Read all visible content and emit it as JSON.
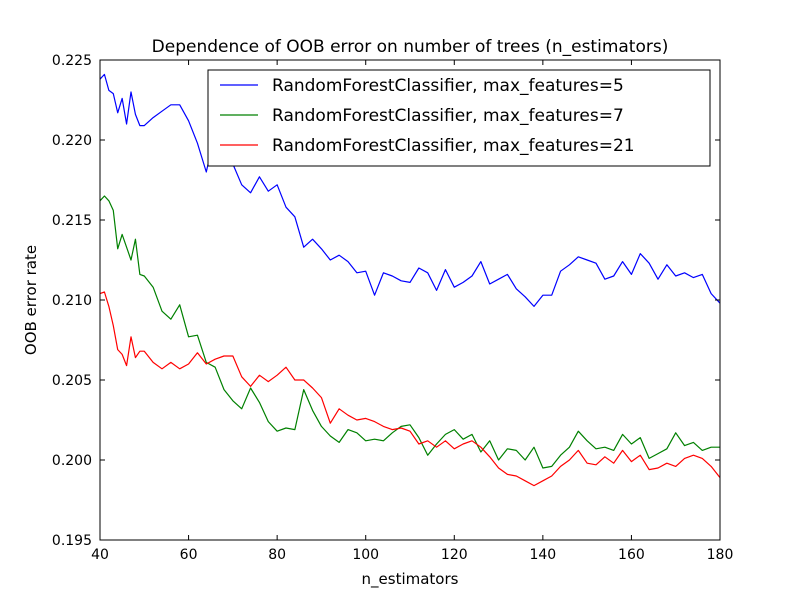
{
  "chart_data": {
    "type": "line",
    "title": "Dependence of OOB error on number of trees (n_estimators)",
    "xlabel": "n_estimators",
    "ylabel": "OOB error rate",
    "xlim": [
      40,
      180
    ],
    "ylim": [
      0.195,
      0.225
    ],
    "xticks": [
      40,
      60,
      80,
      100,
      120,
      140,
      160,
      180
    ],
    "xtick_labels": [
      "40",
      "60",
      "80",
      "100",
      "120",
      "140",
      "160",
      "180"
    ],
    "yticks": [
      0.195,
      0.2,
      0.205,
      0.21,
      0.215,
      0.22,
      0.225
    ],
    "ytick_labels": [
      "0.195",
      "0.200",
      "0.205",
      "0.210",
      "0.215",
      "0.220",
      "0.225"
    ],
    "legend_position": "top-right",
    "grid": false,
    "series": [
      {
        "name": "RandomForestClassifier, max_features=5",
        "color": "#0000ff",
        "x": [
          40,
          41,
          42,
          43,
          44,
          45,
          46,
          47,
          48,
          49,
          50,
          52,
          54,
          56,
          58,
          60,
          62,
          64,
          66,
          68,
          70,
          72,
          74,
          76,
          78,
          80,
          82,
          84,
          86,
          88,
          90,
          92,
          94,
          96,
          98,
          100,
          102,
          104,
          106,
          108,
          110,
          112,
          114,
          116,
          118,
          120,
          122,
          124,
          126,
          128,
          130,
          132,
          134,
          136,
          138,
          140,
          142,
          144,
          146,
          148,
          150,
          152,
          154,
          156,
          158,
          160,
          162,
          164,
          166,
          168,
          170,
          172,
          174,
          176,
          178,
          180
        ],
        "values": [
          0.2238,
          0.2241,
          0.2231,
          0.2229,
          0.2217,
          0.2226,
          0.221,
          0.223,
          0.2216,
          0.2209,
          0.2209,
          0.2214,
          0.2218,
          0.2222,
          0.2222,
          0.2212,
          0.2198,
          0.218,
          0.2205,
          0.2195,
          0.2185,
          0.2172,
          0.2167,
          0.2177,
          0.2168,
          0.2172,
          0.2158,
          0.2152,
          0.2133,
          0.2138,
          0.2132,
          0.2125,
          0.2128,
          0.2124,
          0.2117,
          0.2118,
          0.2103,
          0.2117,
          0.2115,
          0.2112,
          0.2111,
          0.212,
          0.2117,
          0.2106,
          0.2119,
          0.2108,
          0.2111,
          0.2115,
          0.2124,
          0.211,
          0.2113,
          0.2116,
          0.2107,
          0.2102,
          0.2096,
          0.2103,
          0.2103,
          0.2118,
          0.2122,
          0.2127,
          0.2125,
          0.2123,
          0.2113,
          0.2115,
          0.2124,
          0.2116,
          0.2129,
          0.2123,
          0.2113,
          0.2122,
          0.2115,
          0.2117,
          0.2114,
          0.2116,
          0.2104,
          0.2098
        ]
      },
      {
        "name": "RandomForestClassifier, max_features=7",
        "color": "#008000",
        "x": [
          40,
          41,
          42,
          43,
          44,
          45,
          46,
          47,
          48,
          49,
          50,
          52,
          54,
          56,
          58,
          60,
          62,
          64,
          66,
          68,
          70,
          72,
          74,
          76,
          78,
          80,
          82,
          84,
          86,
          88,
          90,
          92,
          94,
          96,
          98,
          100,
          102,
          104,
          106,
          108,
          110,
          112,
          114,
          116,
          118,
          120,
          122,
          124,
          126,
          128,
          130,
          132,
          134,
          136,
          138,
          140,
          142,
          144,
          146,
          148,
          150,
          152,
          154,
          156,
          158,
          160,
          162,
          164,
          166,
          168,
          170,
          172,
          174,
          176,
          178,
          180
        ],
        "values": [
          0.2162,
          0.2165,
          0.2162,
          0.2156,
          0.2132,
          0.2141,
          0.2133,
          0.2125,
          0.2138,
          0.2116,
          0.2115,
          0.2108,
          0.2093,
          0.2088,
          0.2097,
          0.2077,
          0.2078,
          0.2061,
          0.2058,
          0.2044,
          0.2037,
          0.2032,
          0.2045,
          0.2036,
          0.2024,
          0.2018,
          0.202,
          0.2019,
          0.2044,
          0.2031,
          0.2021,
          0.2015,
          0.2011,
          0.2019,
          0.2017,
          0.2012,
          0.2013,
          0.2012,
          0.2017,
          0.2021,
          0.2022,
          0.2014,
          0.2003,
          0.201,
          0.2016,
          0.2019,
          0.2013,
          0.2016,
          0.2005,
          0.2012,
          0.2,
          0.2007,
          0.2006,
          0.2,
          0.2008,
          0.1995,
          0.1996,
          0.2003,
          0.2008,
          0.2018,
          0.2012,
          0.2007,
          0.2008,
          0.2006,
          0.2016,
          0.201,
          0.2014,
          0.2001,
          0.2004,
          0.2007,
          0.2017,
          0.2009,
          0.2011,
          0.2006,
          0.2008,
          0.2008
        ]
      },
      {
        "name": "RandomForestClassifier, max_features=21",
        "color": "#ff0000",
        "x": [
          40,
          41,
          42,
          43,
          44,
          45,
          46,
          47,
          48,
          49,
          50,
          52,
          54,
          56,
          58,
          60,
          62,
          64,
          66,
          68,
          70,
          72,
          74,
          76,
          78,
          80,
          82,
          84,
          86,
          88,
          90,
          92,
          94,
          96,
          98,
          100,
          102,
          104,
          106,
          108,
          110,
          112,
          114,
          116,
          118,
          120,
          122,
          124,
          126,
          128,
          130,
          132,
          134,
          136,
          138,
          140,
          142,
          144,
          146,
          148,
          150,
          152,
          154,
          156,
          158,
          160,
          162,
          164,
          166,
          168,
          170,
          172,
          174,
          176,
          178,
          180
        ],
        "values": [
          0.2104,
          0.2105,
          0.2096,
          0.2084,
          0.2069,
          0.2066,
          0.2059,
          0.2077,
          0.2064,
          0.2068,
          0.2068,
          0.2061,
          0.2057,
          0.2061,
          0.2057,
          0.206,
          0.2067,
          0.206,
          0.2063,
          0.2065,
          0.2065,
          0.2052,
          0.2046,
          0.2053,
          0.2049,
          0.2053,
          0.2058,
          0.205,
          0.205,
          0.2045,
          0.2039,
          0.2023,
          0.2032,
          0.2028,
          0.2025,
          0.2026,
          0.2024,
          0.2021,
          0.2019,
          0.202,
          0.2018,
          0.201,
          0.2012,
          0.2008,
          0.2012,
          0.2007,
          0.201,
          0.2012,
          0.2008,
          0.2002,
          0.1995,
          0.1991,
          0.199,
          0.1987,
          0.1984,
          0.1987,
          0.199,
          0.1996,
          0.2,
          0.2006,
          0.1998,
          0.1997,
          0.2002,
          0.1998,
          0.2006,
          0.1999,
          0.2003,
          0.1994,
          0.1995,
          0.1998,
          0.1996,
          0.2001,
          0.2003,
          0.2001,
          0.1996,
          0.1989
        ]
      }
    ]
  }
}
